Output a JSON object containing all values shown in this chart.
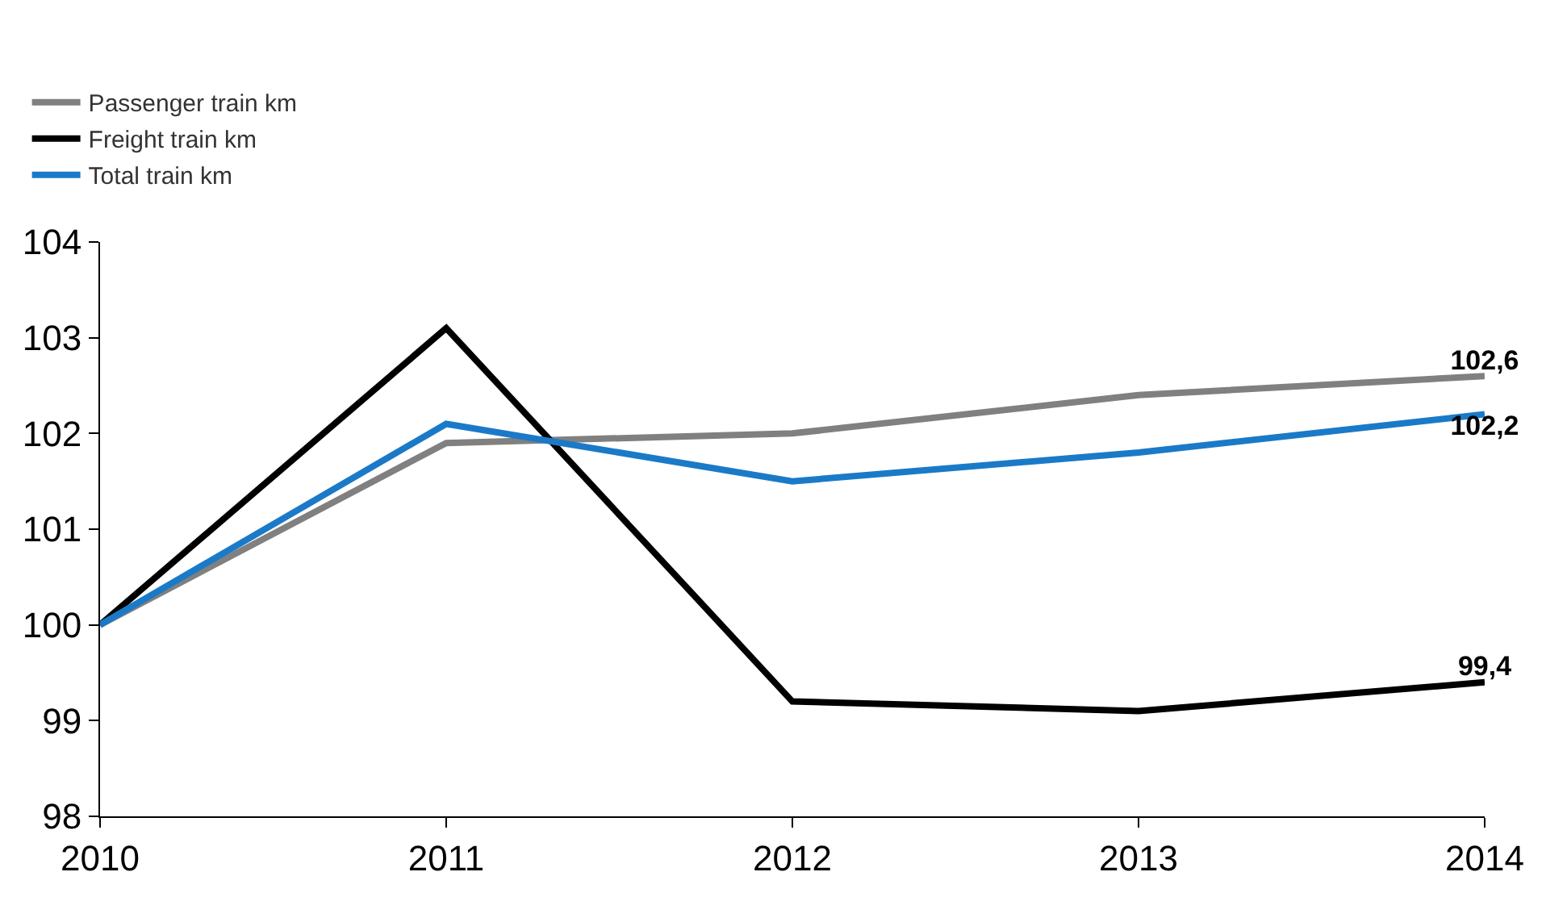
{
  "chart_data": {
    "type": "line",
    "categories": [
      "2010",
      "2011",
      "2012",
      "2013",
      "2014"
    ],
    "series": [
      {
        "name": "Passenger train km",
        "color": "#808080",
        "values": [
          100,
          101.9,
          102.0,
          102.4,
          102.6
        ],
        "value_labels": [
          null,
          null,
          null,
          null,
          "102,6"
        ]
      },
      {
        "name": "Freight train km",
        "color": "#000000",
        "values": [
          100,
          103.1,
          99.2,
          99.1,
          99.4
        ],
        "value_labels": [
          null,
          null,
          null,
          null,
          "99,4"
        ]
      },
      {
        "name": "Total train km",
        "color": "#1a7ac8",
        "values": [
          100,
          102.1,
          101.5,
          101.8,
          102.2
        ],
        "value_labels": [
          null,
          null,
          null,
          null,
          "102,2"
        ]
      }
    ],
    "ylim": [
      98,
      104
    ],
    "yticks": [
      98,
      99,
      100,
      101,
      102,
      103,
      104
    ],
    "legend": "top left",
    "marker": "none",
    "line_style": "solid"
  }
}
